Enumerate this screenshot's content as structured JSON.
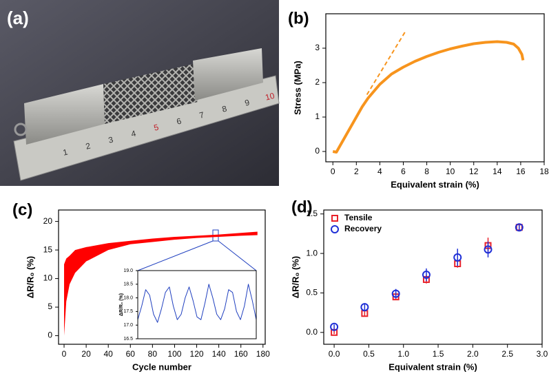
{
  "photo": {
    "label": "(a)",
    "ruler_labels": [
      "1",
      "2",
      "3",
      "4",
      "5",
      "6",
      "7",
      "8",
      "9",
      "10"
    ]
  },
  "chart_data": [
    {
      "type": "line",
      "panel_label": "(b)",
      "xlabel": "Equivalent strain (%)",
      "ylabel": "Stress (MPa)",
      "xlim": [
        -0.6,
        18
      ],
      "xticks": [
        0,
        2,
        4,
        6,
        8,
        10,
        12,
        14,
        16,
        18
      ],
      "ylim": [
        -0.3,
        4.0
      ],
      "yticks": [
        0,
        1,
        2,
        3
      ],
      "series": [
        {
          "color": "#f7941d",
          "style": "solid",
          "x": [
            0,
            0.3,
            0.5,
            1,
            1.5,
            2,
            2.5,
            3,
            4,
            5,
            6,
            7,
            8,
            9,
            10,
            11,
            12,
            13,
            14,
            14.8,
            15.4,
            15.8,
            16.1,
            16.2
          ],
          "values": [
            0,
            -0.02,
            0.1,
            0.4,
            0.7,
            1.0,
            1.3,
            1.55,
            1.95,
            2.25,
            2.45,
            2.62,
            2.76,
            2.88,
            2.98,
            3.06,
            3.13,
            3.17,
            3.19,
            3.17,
            3.12,
            3.0,
            2.82,
            2.65
          ]
        },
        {
          "color": "#f7941d",
          "style": "dashed",
          "x": [
            2.9,
            6.2
          ],
          "values": [
            1.65,
            3.5
          ]
        }
      ]
    },
    {
      "type": "band",
      "panel_label": "(c)",
      "xlabel": "Cycle number",
      "ylabel": "ΔR/R₀ (%)",
      "xlim": [
        -5,
        182
      ],
      "xticks": [
        0,
        20,
        40,
        60,
        80,
        100,
        120,
        140,
        160,
        180
      ],
      "ylim": [
        -1.5,
        22
      ],
      "yticks": [
        0,
        5,
        10,
        15,
        20
      ],
      "color": "#ff0000",
      "band": {
        "x": [
          0,
          1,
          2,
          5,
          10,
          20,
          40,
          60,
          80,
          100,
          120,
          140,
          160,
          175
        ],
        "upper": [
          12.5,
          13,
          13.5,
          14,
          15,
          15.5,
          16.2,
          16.6,
          17,
          17.3,
          17.5,
          17.7,
          18,
          18.2
        ],
        "lower": [
          0,
          3,
          6,
          9,
          11,
          13,
          15,
          16,
          16.4,
          16.8,
          17.1,
          17.3,
          17.5,
          17.6
        ]
      }
    },
    {
      "type": "line",
      "ylabel": "ΔR/R₀ (%)",
      "xlim": [
        0,
        30
      ],
      "xticks": [],
      "ylim": [
        16.5,
        19.0
      ],
      "yticks": [
        {
          "value": 16.5,
          "label": "16.5"
        },
        {
          "value": 17.0,
          "label": "17.0"
        },
        {
          "value": 17.5,
          "label": "17.5"
        },
        {
          "value": 18.0,
          "label": "18.0"
        },
        {
          "value": 18.5,
          "label": "18.5"
        },
        {
          "value": 19.0,
          "label": "19.0"
        }
      ],
      "series": [
        {
          "color": "#1f3fbf",
          "style": "solid",
          "x": [
            0,
            1,
            2,
            3,
            4,
            5,
            6,
            7,
            8,
            9,
            10,
            11,
            12,
            13,
            14,
            15,
            16,
            17,
            18,
            19,
            20,
            21,
            22,
            23,
            24,
            25,
            26,
            27,
            28,
            29,
            30
          ],
          "values": [
            17.2,
            17.7,
            18.3,
            18.1,
            17.4,
            17.1,
            17.6,
            18.2,
            18.4,
            17.7,
            17.2,
            17.4,
            18.0,
            18.4,
            17.9,
            17.3,
            17.2,
            17.8,
            18.5,
            18.0,
            17.4,
            17.2,
            17.6,
            18.3,
            18.2,
            17.5,
            17.2,
            17.7,
            18.5,
            17.9,
            17.2
          ]
        }
      ]
    },
    {
      "type": "scatter",
      "panel_label": "(d)",
      "xlabel": "Equivalent strain (%)",
      "ylabel": "ΔR/R₀ (%)",
      "xlim": [
        -0.15,
        3.0
      ],
      "xticks": [
        {
          "value": 0,
          "label": "0.0"
        },
        {
          "value": 0.5,
          "label": "0.5"
        },
        {
          "value": 1,
          "label": "1.0"
        },
        {
          "value": 1.5,
          "label": "1.5"
        },
        {
          "value": 2,
          "label": "2.0"
        },
        {
          "value": 2.5,
          "label": "2.5"
        },
        {
          "value": 3,
          "label": "3.0"
        }
      ],
      "ylim": [
        -0.15,
        1.55
      ],
      "yticks": [
        {
          "value": 0,
          "label": "0.0"
        },
        {
          "value": 0.5,
          "label": "0.5"
        },
        {
          "value": 1,
          "label": "1.0"
        },
        {
          "value": 1.5,
          "label": "1.5"
        }
      ],
      "legend": "upper-left",
      "series": [
        {
          "name": "Tensile",
          "color": "#e8212a",
          "marker": "square",
          "x": [
            0,
            0.44,
            0.89,
            1.33,
            1.78,
            2.22,
            2.67
          ],
          "values": [
            0.0,
            0.24,
            0.45,
            0.67,
            0.87,
            1.1,
            1.33
          ],
          "errors": [
            0.02,
            0.03,
            0.04,
            0.05,
            0.05,
            0.1,
            0.03
          ]
        },
        {
          "name": "Recovery",
          "color": "#1f2fd6",
          "marker": "circle",
          "x": [
            0,
            0.44,
            0.89,
            1.33,
            1.78,
            2.22,
            2.67
          ],
          "values": [
            0.07,
            0.32,
            0.49,
            0.73,
            0.95,
            1.05,
            1.33
          ],
          "errors": [
            0.03,
            0.04,
            0.06,
            0.08,
            0.11,
            0.1,
            0.03
          ]
        }
      ]
    }
  ]
}
